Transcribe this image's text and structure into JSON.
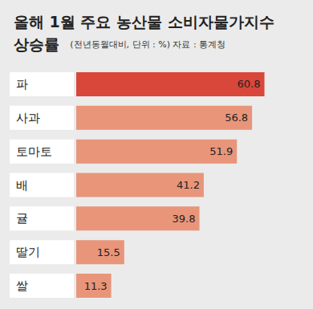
{
  "chart_data": {
    "type": "bar",
    "title": "올해 1월 주요 농산물 소비자물가지수 상승률",
    "subtitle": "(전년동월대비, 단위 : %) 자료 : 통계청",
    "categories": [
      "파",
      "사과",
      "토마토",
      "배",
      "귤",
      "딸기",
      "쌀"
    ],
    "values": [
      60.8,
      56.8,
      51.9,
      41.2,
      39.8,
      15.5,
      11.3
    ],
    "colors": [
      "#d9473b",
      "#e9957a",
      "#e9957a",
      "#e9957a",
      "#e9957a",
      "#e9957a",
      "#e9957a"
    ],
    "xlim": [
      0,
      70
    ],
    "orientation": "horizontal",
    "data_labels": true,
    "tick_labels": "y",
    "grid": false
  }
}
